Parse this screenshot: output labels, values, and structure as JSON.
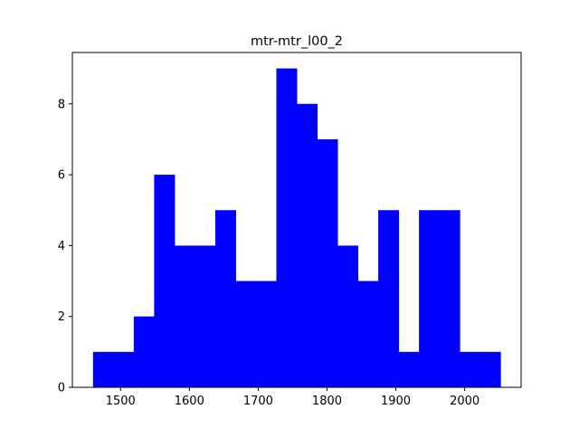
{
  "chart_data": {
    "type": "bar",
    "title": "mtr-mtr_l00_2",
    "xlabel": "",
    "ylabel": "",
    "bin_edges": [
      1460,
      1489.6,
      1519.2,
      1548.8,
      1578.4,
      1608,
      1637.6,
      1667.2,
      1696.8,
      1726.4,
      1756,
      1785.6,
      1815.2,
      1844.8,
      1874.4,
      1904,
      1933.6,
      1963.2,
      1992.8,
      2022.4,
      2052
    ],
    "values": [
      1,
      1,
      2,
      6,
      4,
      4,
      5,
      3,
      3,
      9,
      8,
      7,
      4,
      3,
      5,
      1,
      5,
      5,
      1,
      1
    ],
    "xlim": [
      1430,
      2082
    ],
    "ylim": [
      0,
      9.45
    ],
    "x_ticks": [
      1500,
      1600,
      1700,
      1800,
      1900,
      2000
    ],
    "x_tick_labels": [
      "1500",
      "1600",
      "1700",
      "1800",
      "1900",
      "2000"
    ],
    "y_ticks": [
      0,
      2,
      4,
      6,
      8
    ],
    "y_tick_labels": [
      "0",
      "2",
      "4",
      "6",
      "8"
    ],
    "grid": false,
    "bar_color": "#0000ff"
  }
}
